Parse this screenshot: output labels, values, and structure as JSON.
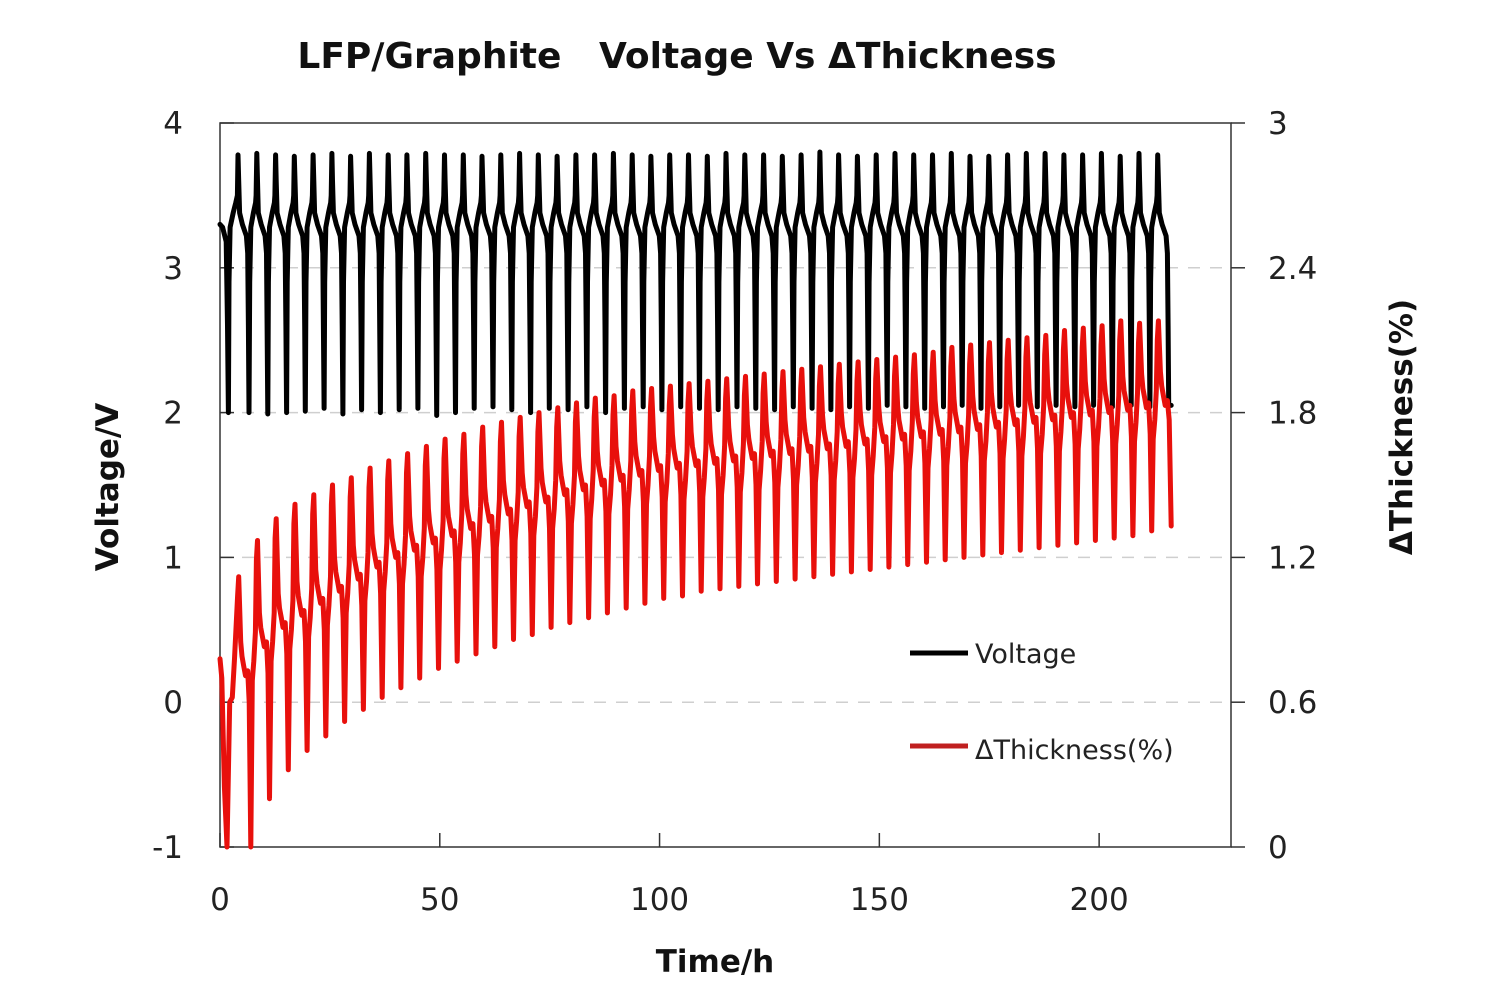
{
  "chart_data": {
    "type": "line",
    "title": "LFP/Graphite   Voltage Vs ΔThickness",
    "xlabel": "Time/h",
    "ylabel_left": "Voltage/V",
    "ylabel_right": "ΔThickness(%)",
    "xlim": [
      0,
      230
    ],
    "ylim_left": [
      -1,
      4
    ],
    "ylim_right": [
      0,
      3
    ],
    "x_ticks": [
      0,
      50,
      100,
      150,
      200
    ],
    "y_ticks_left": [
      -1,
      0,
      1,
      2,
      3,
      4
    ],
    "y_ticks_right": [
      0,
      0.6,
      1.2,
      1.8,
      2.4,
      3
    ],
    "x_tick_labels": [
      "0",
      "50",
      "100",
      "150",
      "200"
    ],
    "y_tick_labels_left": [
      "-1",
      "0",
      "1",
      "2",
      "3",
      "4"
    ],
    "y_tick_labels_right": [
      "0",
      "0.6",
      "1.2",
      "1.8",
      "2.4",
      "3"
    ],
    "grid": "horizontal dashed",
    "legend_position": "lower-right",
    "legend": [
      {
        "label": "Voltage",
        "color": "#000000"
      },
      {
        "label": "ΔThickness(%)",
        "color": "#c02020"
      }
    ],
    "series": [
      {
        "name": "Voltage",
        "axis": "left",
        "color": "#000000",
        "start": {
          "t": 0,
          "v": 3.3
        },
        "end": {
          "t": 216.4,
          "v": 2.05
        },
        "cycle_count": 50,
        "first_peak_t": 4.1,
        "cycle_period_h": 4.27,
        "charge_plateau_v": 3.38,
        "discharge_plateau_v": 3.22,
        "peak_v": [
          3.78,
          3.79,
          3.78,
          3.77,
          3.78,
          3.79,
          3.77,
          3.79,
          3.78,
          3.78,
          3.79,
          3.78,
          3.78,
          3.77,
          3.78,
          3.79,
          3.78,
          3.77,
          3.78,
          3.78,
          3.79,
          3.78,
          3.77,
          3.78,
          3.78,
          3.77,
          3.79,
          3.78,
          3.78,
          3.77,
          3.78,
          3.8,
          3.78,
          3.77,
          3.78,
          3.79,
          3.78,
          3.78,
          3.79,
          3.77,
          3.77,
          3.78,
          3.79,
          3.79,
          3.78,
          3.78,
          3.79,
          3.77,
          3.79,
          3.78
        ],
        "trough_v": [
          2.0,
          1.99,
          2.0,
          2.01,
          2.03,
          1.99,
          2.02,
          2.0,
          2.02,
          2.03,
          1.98,
          2.0,
          2.03,
          2.04,
          2.02,
          2.0,
          2.03,
          2.02,
          2.04,
          2.0,
          2.03,
          2.04,
          2.02,
          2.04,
          2.03,
          2.02,
          2.04,
          2.03,
          2.02,
          2.04,
          2.03,
          2.02,
          2.04,
          2.03,
          2.05,
          2.04,
          2.03,
          2.04,
          2.05,
          2.03,
          2.04,
          2.05,
          2.04,
          2.05,
          2.04,
          2.05,
          2.04,
          2.05,
          2.04,
          2.05
        ]
      },
      {
        "name": "ΔThickness(%)",
        "axis": "right",
        "color": "#e8100c",
        "start": {
          "t": 0,
          "value": 0.78
        },
        "end": {
          "t": 216.4,
          "value": 1.33
        },
        "cycle_count": 50,
        "peak_pct": [
          1.12,
          1.27,
          1.36,
          1.42,
          1.46,
          1.5,
          1.53,
          1.57,
          1.6,
          1.63,
          1.66,
          1.69,
          1.71,
          1.74,
          1.76,
          1.78,
          1.8,
          1.82,
          1.84,
          1.86,
          1.87,
          1.89,
          1.9,
          1.91,
          1.92,
          1.93,
          1.94,
          1.95,
          1.96,
          1.97,
          1.98,
          1.99,
          2.0,
          2.01,
          2.02,
          2.03,
          2.04,
          2.05,
          2.07,
          2.08,
          2.09,
          2.1,
          2.11,
          2.12,
          2.14,
          2.15,
          2.16,
          2.18,
          2.17,
          2.18
        ],
        "mid_pct": [
          0.75,
          0.87,
          0.95,
          1.0,
          1.05,
          1.1,
          1.15,
          1.2,
          1.24,
          1.27,
          1.3,
          1.33,
          1.36,
          1.39,
          1.42,
          1.45,
          1.47,
          1.5,
          1.52,
          1.54,
          1.56,
          1.58,
          1.6,
          1.61,
          1.62,
          1.63,
          1.64,
          1.65,
          1.66,
          1.67,
          1.68,
          1.69,
          1.7,
          1.71,
          1.72,
          1.73,
          1.74,
          1.75,
          1.76,
          1.77,
          1.78,
          1.79,
          1.8,
          1.81,
          1.82,
          1.83,
          1.84,
          1.85,
          1.86,
          1.87
        ],
        "trough_pct": [
          0.0,
          0.2,
          0.32,
          0.4,
          0.46,
          0.52,
          0.57,
          0.62,
          0.66,
          0.7,
          0.74,
          0.77,
          0.8,
          0.83,
          0.86,
          0.88,
          0.91,
          0.93,
          0.95,
          0.97,
          0.99,
          1.01,
          1.03,
          1.04,
          1.06,
          1.07,
          1.08,
          1.09,
          1.1,
          1.11,
          1.12,
          1.13,
          1.14,
          1.15,
          1.16,
          1.17,
          1.18,
          1.19,
          1.2,
          1.21,
          1.22,
          1.23,
          1.24,
          1.25,
          1.26,
          1.27,
          1.28,
          1.29,
          1.31,
          1.33
        ]
      }
    ]
  }
}
